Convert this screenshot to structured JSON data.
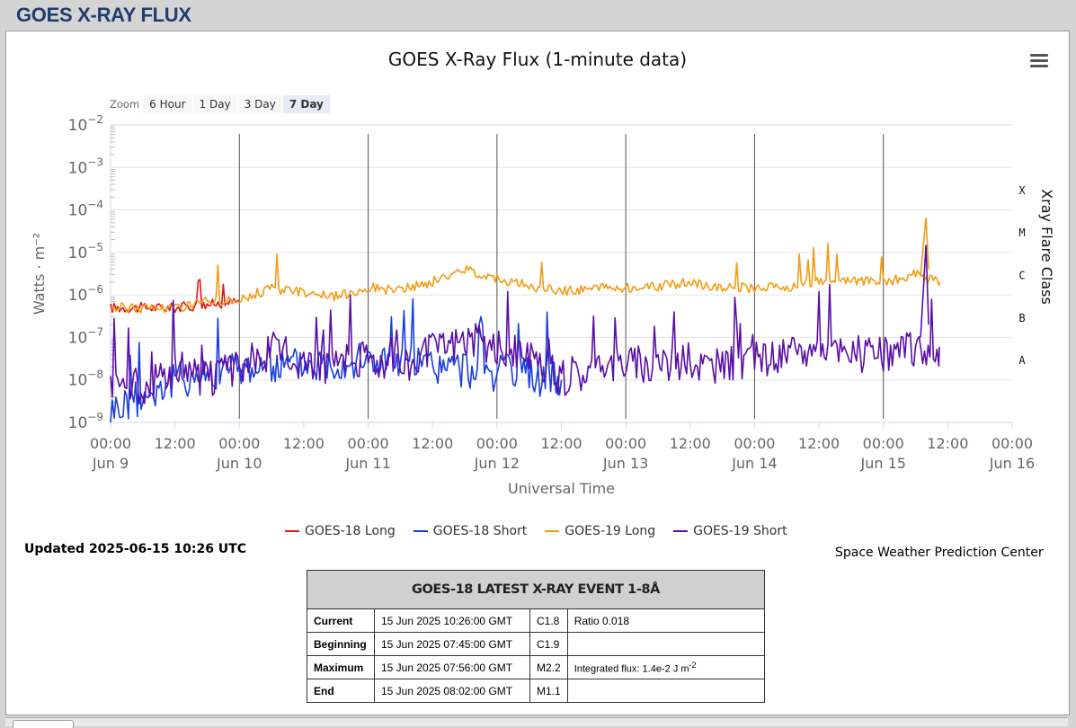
{
  "page": {
    "title": "GOES X-RAY FLUX"
  },
  "zoom": {
    "label": "Zoom",
    "buttons": [
      "6 Hour",
      "1 Day",
      "3 Day",
      "7 Day"
    ],
    "active": "7 Day"
  },
  "chart_data": {
    "type": "line",
    "title": "GOES X-Ray Flux (1-minute data)",
    "xlabel": "Universal Time",
    "ylabel": "Watts · m⁻²",
    "y2label": "Xray Flare Class",
    "yscale": "log",
    "ylim": [
      "1e-9",
      "1e-2"
    ],
    "xlim": [
      "2025-06-09 00:00",
      "2025-06-16 00:00"
    ],
    "grid": true,
    "legend_position": "bottom-center",
    "y_ticks": [
      {
        "base": "10",
        "exp": "−2"
      },
      {
        "base": "10",
        "exp": "−3"
      },
      {
        "base": "10",
        "exp": "−4"
      },
      {
        "base": "10",
        "exp": "−5"
      },
      {
        "base": "10",
        "exp": "−6"
      },
      {
        "base": "10",
        "exp": "−7"
      },
      {
        "base": "10",
        "exp": "−8"
      },
      {
        "base": "10",
        "exp": "−9"
      }
    ],
    "x_ticks": [
      {
        "time": "00:00",
        "date": "Jun 9"
      },
      {
        "time": "12:00",
        "date": ""
      },
      {
        "time": "00:00",
        "date": "Jun 10"
      },
      {
        "time": "12:00",
        "date": ""
      },
      {
        "time": "00:00",
        "date": "Jun 11"
      },
      {
        "time": "12:00",
        "date": ""
      },
      {
        "time": "00:00",
        "date": "Jun 12"
      },
      {
        "time": "12:00",
        "date": ""
      },
      {
        "time": "00:00",
        "date": "Jun 13"
      },
      {
        "time": "12:00",
        "date": ""
      },
      {
        "time": "00:00",
        "date": "Jun 14"
      },
      {
        "time": "12:00",
        "date": ""
      },
      {
        "time": "00:00",
        "date": "Jun 15"
      },
      {
        "time": "12:00",
        "date": ""
      },
      {
        "time": "00:00",
        "date": "Jun 16"
      }
    ],
    "flare_classes": [
      {
        "label": "X",
        "flux": "1e-4"
      },
      {
        "label": "M",
        "flux": "1e-5"
      },
      {
        "label": "C",
        "flux": "1e-6"
      },
      {
        "label": "B",
        "flux": "1e-7"
      },
      {
        "label": "A",
        "flux": "1e-8"
      }
    ],
    "series": [
      {
        "name": "GOES-18 Long",
        "color": "#e0141b",
        "points": [
          [
            "Jun 9 00:00",
            "5e-7"
          ],
          [
            "Jun 9 12:00",
            "5e-7"
          ],
          [
            "Jun 10 00:00",
            "7e-7"
          ]
        ]
      },
      {
        "name": "GOES-18 Short",
        "color": "#1a3ee0",
        "points": [
          [
            "Jun 9 00:00",
            "2e-9"
          ],
          [
            "Jun 9 06:00",
            "4e-9"
          ],
          [
            "Jun 9 12:00",
            "1e-8"
          ],
          [
            "Jun 10 00:00",
            "2e-8"
          ],
          [
            "Jun 11 00:00",
            "3e-8"
          ],
          [
            "Jun 12 00:00",
            "1.5e-8"
          ],
          [
            "Jun 12 12:00",
            "1e-8"
          ]
        ]
      },
      {
        "name": "GOES-19 Long",
        "color": "#f39c12",
        "points": [
          [
            "Jun 9 00:00",
            "5e-7"
          ],
          [
            "Jun 9 06:00",
            "5e-7"
          ],
          [
            "Jun 9 12:00",
            "5e-7"
          ],
          [
            "Jun 9 18:00",
            "7e-7"
          ],
          [
            "Jun 10 00:00",
            "8e-7"
          ],
          [
            "Jun 10 06:00",
            "1.4e-6"
          ],
          [
            "Jun 10 12:00",
            "1.2e-6"
          ],
          [
            "Jun 10 18:00",
            "9e-7"
          ],
          [
            "Jun 11 00:00",
            "1.5e-6"
          ],
          [
            "Jun 11 06:00",
            "1.3e-6"
          ],
          [
            "Jun 11 12:00",
            "2e-6"
          ],
          [
            "Jun 11 18:00",
            "4e-6"
          ],
          [
            "Jun 12 00:00",
            "2.5e-6"
          ],
          [
            "Jun 12 06:00",
            "1.6e-6"
          ],
          [
            "Jun 12 12:00",
            "1.2e-6"
          ],
          [
            "Jun 12 18:00",
            "1.5e-6"
          ],
          [
            "Jun 13 00:00",
            "1.5e-6"
          ],
          [
            "Jun 13 06:00",
            "1.6e-6"
          ],
          [
            "Jun 13 12:00",
            "2e-6"
          ],
          [
            "Jun 13 18:00",
            "1.5e-6"
          ],
          [
            "Jun 14 00:00",
            "1.5e-6"
          ],
          [
            "Jun 14 06:00",
            "1.5e-6"
          ],
          [
            "Jun 14 12:00",
            "2e-6"
          ],
          [
            "Jun 14 18:00",
            "2.2e-6"
          ],
          [
            "Jun 15 00:00",
            "2e-6"
          ],
          [
            "Jun 15 06:00",
            "3e-6"
          ],
          [
            "Jun 15 10:26",
            "2e-6"
          ]
        ]
      },
      {
        "name": "GOES-19 Short",
        "color": "#5b0fa8",
        "points": [
          [
            "Jun 9 00:00",
            "1e-8"
          ],
          [
            "Jun 9 06:00",
            "7e-9"
          ],
          [
            "Jun 9 12:00",
            "2e-8"
          ],
          [
            "Jun 9 18:00",
            "1e-8"
          ],
          [
            "Jun 10 00:00",
            "2e-8"
          ],
          [
            "Jun 10 06:00",
            "5e-8"
          ],
          [
            "Jun 10 12:00",
            "3e-8"
          ],
          [
            "Jun 10 18:00",
            "2e-8"
          ],
          [
            "Jun 11 00:00",
            "4e-8"
          ],
          [
            "Jun 11 06:00",
            "2e-8"
          ],
          [
            "Jun 11 12:00",
            "5e-8"
          ],
          [
            "Jun 11 18:00",
            "1e-7"
          ],
          [
            "Jun 12 00:00",
            "6e-8"
          ],
          [
            "Jun 12 06:00",
            "3e-8"
          ],
          [
            "Jun 12 12:00",
            "1e-8"
          ],
          [
            "Jun 12 18:00",
            "2e-8"
          ],
          [
            "Jun 13 00:00",
            "3e-8"
          ],
          [
            "Jun 13 06:00",
            "2e-8"
          ],
          [
            "Jun 13 12:00",
            "3e-8"
          ],
          [
            "Jun 13 18:00",
            "2e-8"
          ],
          [
            "Jun 14 00:00",
            "3e-8"
          ],
          [
            "Jun 14 06:00",
            "4e-8"
          ],
          [
            "Jun 14 12:00",
            "6e-8"
          ],
          [
            "Jun 14 18:00",
            "4e-8"
          ],
          [
            "Jun 15 00:00",
            "4e-8"
          ],
          [
            "Jun 15 06:00",
            "6e-8"
          ],
          [
            "Jun 15 10:26",
            "6e-8"
          ]
        ]
      }
    ]
  },
  "legend": [
    {
      "name": "GOES-18 Long",
      "color": "#e0141b"
    },
    {
      "name": "GOES-18 Short",
      "color": "#1a3ee0"
    },
    {
      "name": "GOES-19 Long",
      "color": "#f39c12"
    },
    {
      "name": "GOES-19 Short",
      "color": "#5b0fa8"
    }
  ],
  "updated": "Updated 2025-06-15 10:26 UTC",
  "credit": "Space Weather Prediction Center",
  "event": {
    "title": "GOES-18 LATEST X-RAY EVENT 1-8Å",
    "rows": [
      {
        "label": "Current",
        "time": "15 Jun 2025 10:26:00 GMT",
        "class": "C1.8",
        "extra": "Ratio 0.018"
      },
      {
        "label": "Beginning",
        "time": "15 Jun 2025 07:45:00 GMT",
        "class": "C1.9",
        "extra": ""
      },
      {
        "label": "Maximum",
        "time": "15 Jun 2025 07:56:00 GMT",
        "class": "M2.2",
        "extra": "Integrated flux: 1.4e-2 J m",
        "extra_sup": "-2"
      },
      {
        "label": "End",
        "time": "15 Jun 2025 08:02:00 GMT",
        "class": "M1.1",
        "extra": ""
      }
    ]
  }
}
